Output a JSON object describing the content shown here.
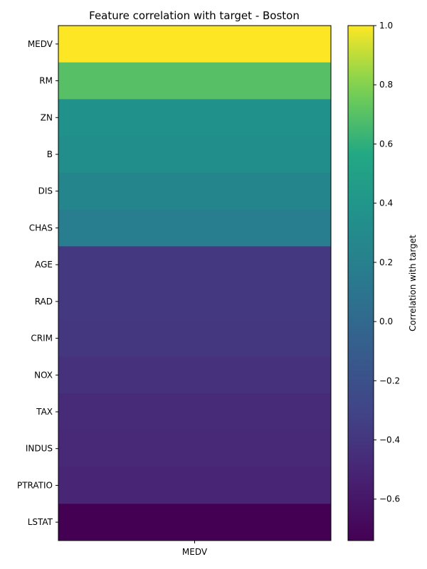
{
  "chart_data": {
    "type": "heatmap",
    "title": "Feature correlation with target - Boston",
    "columns": [
      "MEDV"
    ],
    "rows": [
      "MEDV",
      "RM",
      "ZN",
      "B",
      "DIS",
      "CHAS",
      "AGE",
      "RAD",
      "CRIM",
      "NOX",
      "TAX",
      "INDUS",
      "PTRATIO",
      "LSTAT"
    ],
    "values": [
      1.0,
      0.7,
      0.36,
      0.33,
      0.25,
      0.18,
      -0.38,
      -0.38,
      -0.39,
      -0.43,
      -0.47,
      -0.48,
      -0.51,
      -0.74
    ],
    "colormap": "viridis",
    "colorbar": {
      "label": "Correlation with target",
      "range": [
        -0.74,
        1.0
      ],
      "ticks": [
        1.0,
        0.8,
        0.6,
        0.4,
        0.2,
        0.0,
        -0.2,
        -0.4,
        -0.6
      ],
      "tick_labels": [
        "1.0",
        "0.8",
        "0.6",
        "0.4",
        "0.2",
        "0.0",
        "−0.2",
        "−0.4",
        "−0.6"
      ]
    }
  }
}
